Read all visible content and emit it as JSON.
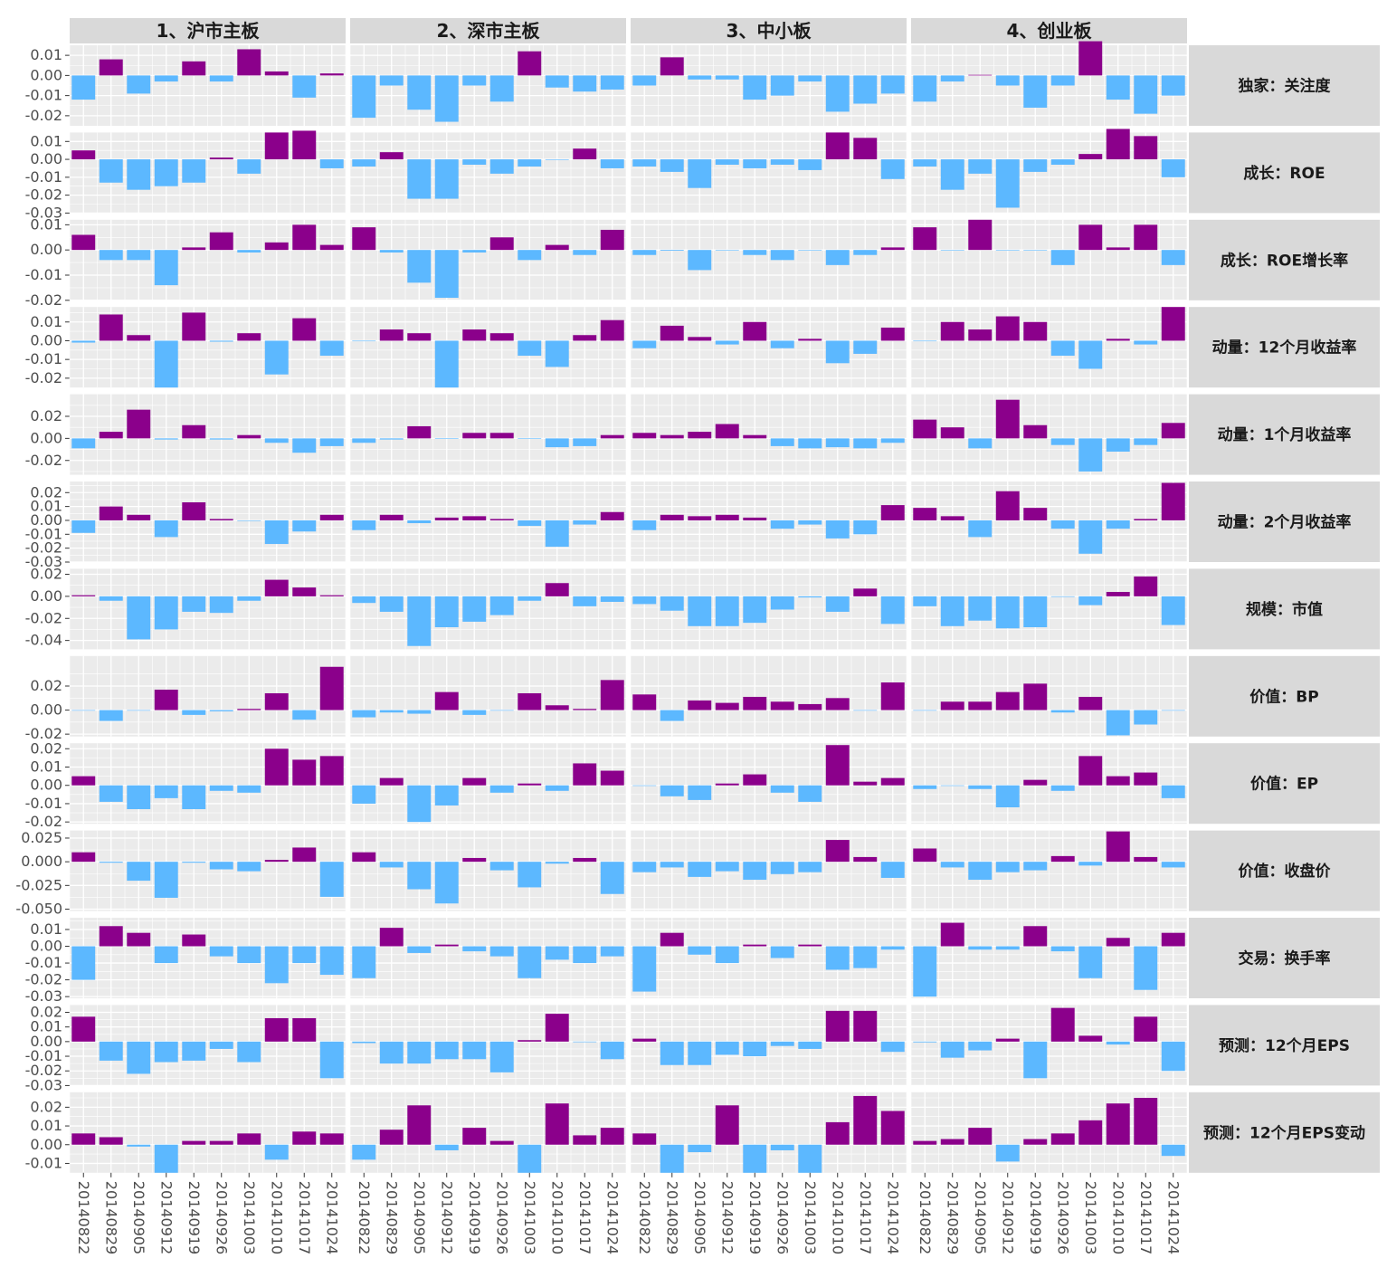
{
  "colors": {
    "positive": "#8B008B",
    "negative": "#5CB8FF",
    "panel": "#EBEBEB",
    "strip": "#D9D9D9",
    "grid": "#FFFFFF",
    "text": "#1a1a1a",
    "tick": "#4d4d4d"
  },
  "chart_data": {
    "type": "bar",
    "title": "",
    "xlabel": "",
    "ylabel": "",
    "grid": true,
    "legend": "none",
    "dates": [
      "20140822",
      "20140829",
      "20140905",
      "20140912",
      "20140919",
      "20140926",
      "20141003",
      "20141010",
      "20141017",
      "20141024"
    ],
    "columns": [
      "1、沪市主板",
      "2、深市主板",
      "3、中小板",
      "4、创业板"
    ],
    "rows": [
      {
        "label": "独家：关注度",
        "ylim": [
          -0.025,
          0.015
        ],
        "ticks": [
          0.01,
          0.0,
          -0.01,
          -0.02
        ],
        "tick_labels": [
          "0.01",
          "0.00",
          "-0.01",
          "-0.02"
        ],
        "values": [
          [
            -0.012,
            0.008,
            -0.009,
            -0.003,
            0.007,
            -0.003,
            0.013,
            0.002,
            -0.011,
            0.001
          ],
          [
            -0.021,
            -0.005,
            -0.017,
            -0.023,
            -0.005,
            -0.013,
            0.012,
            -0.006,
            -0.008,
            -0.007
          ],
          [
            -0.005,
            0.009,
            -0.002,
            -0.002,
            -0.012,
            -0.01,
            -0.003,
            -0.018,
            -0.014,
            -0.009
          ],
          [
            -0.013,
            -0.003,
            0.0003,
            -0.005,
            -0.016,
            -0.005,
            0.017,
            -0.012,
            -0.019,
            -0.01
          ]
        ]
      },
      {
        "label": "成长：ROE",
        "ylim": [
          -0.03,
          0.015
        ],
        "ticks": [
          0.01,
          0.0,
          -0.01,
          -0.02,
          -0.03
        ],
        "tick_labels": [
          "0.01",
          "0.00",
          "-0.01",
          "-0.02",
          "-0.03"
        ],
        "values": [
          [
            0.005,
            -0.013,
            -0.017,
            -0.015,
            -0.013,
            0.001,
            -0.008,
            0.015,
            0.016,
            -0.005
          ],
          [
            -0.004,
            0.004,
            -0.022,
            -0.022,
            -0.003,
            -0.008,
            -0.004,
            0.0,
            0.006,
            -0.005
          ],
          [
            -0.004,
            -0.007,
            -0.016,
            -0.003,
            -0.005,
            -0.003,
            -0.006,
            0.015,
            0.012,
            -0.011
          ],
          [
            -0.004,
            -0.017,
            -0.008,
            -0.027,
            -0.007,
            -0.003,
            0.003,
            0.017,
            0.013,
            -0.01
          ]
        ]
      },
      {
        "label": "成长：ROE增长率",
        "ylim": [
          -0.02,
          0.012
        ],
        "ticks": [
          0.01,
          0.0,
          -0.01,
          -0.02
        ],
        "tick_labels": [
          "0.01",
          "0.00",
          "-0.01",
          "-0.02"
        ],
        "values": [
          [
            0.006,
            -0.004,
            -0.004,
            -0.014,
            0.001,
            0.007,
            -0.001,
            0.003,
            0.01,
            0.002
          ],
          [
            0.009,
            -0.001,
            -0.013,
            -0.019,
            -0.001,
            0.005,
            -0.004,
            0.002,
            -0.002,
            0.008
          ],
          [
            -0.002,
            -0.0003,
            -0.008,
            0.0,
            -0.002,
            -0.004,
            0.0,
            -0.006,
            -0.002,
            0.001
          ],
          [
            0.009,
            0.0,
            0.012,
            0.0,
            0.0,
            -0.006,
            0.01,
            0.001,
            0.01,
            -0.006
          ]
        ]
      },
      {
        "label": "动量：12个月收益率",
        "ylim": [
          -0.025,
          0.018
        ],
        "ticks": [
          0.01,
          0.0,
          -0.01,
          -0.02
        ],
        "tick_labels": [
          "0.01",
          "0.00",
          "-0.01",
          "-0.02"
        ],
        "values": [
          [
            -0.001,
            0.014,
            0.003,
            -0.025,
            0.015,
            -0.0005,
            0.004,
            -0.018,
            0.012,
            -0.008
          ],
          [
            0.0,
            0.006,
            0.004,
            -0.025,
            0.006,
            0.004,
            -0.008,
            -0.014,
            0.003,
            0.011
          ],
          [
            -0.004,
            0.008,
            0.002,
            -0.002,
            0.01,
            -0.004,
            0.001,
            -0.012,
            -0.007,
            0.007
          ],
          [
            0.0,
            0.01,
            0.006,
            0.013,
            0.01,
            -0.008,
            -0.015,
            0.001,
            -0.002,
            0.018
          ]
        ]
      },
      {
        "label": "动量：1个月收益率",
        "ylim": [
          -0.033,
          0.04
        ],
        "ticks": [
          0.02,
          0.0,
          -0.02
        ],
        "tick_labels": [
          "0.02",
          "0.00",
          "-0.02"
        ],
        "values": [
          [
            -0.009,
            0.006,
            0.026,
            -0.001,
            0.012,
            -0.001,
            0.003,
            -0.004,
            -0.013,
            -0.007
          ],
          [
            -0.004,
            -0.001,
            0.011,
            0.0,
            0.005,
            0.005,
            0.0,
            -0.008,
            -0.007,
            0.003
          ],
          [
            0.005,
            0.003,
            0.006,
            0.013,
            0.003,
            -0.007,
            -0.009,
            -0.008,
            -0.009,
            -0.004
          ],
          [
            0.017,
            0.01,
            -0.009,
            0.035,
            0.012,
            -0.006,
            -0.03,
            -0.012,
            -0.006,
            0.014
          ]
        ]
      },
      {
        "label": "动量：2个月收益率",
        "ylim": [
          -0.03,
          0.028
        ],
        "ticks": [
          0.02,
          0.01,
          0.0,
          -0.01,
          -0.02,
          -0.03
        ],
        "tick_labels": [
          "0.02",
          "0.01",
          "0.00",
          "-0.01",
          "-0.02",
          "-0.03"
        ],
        "values": [
          [
            -0.009,
            0.01,
            0.004,
            -0.012,
            0.013,
            0.001,
            0.0,
            -0.017,
            -0.008,
            0.004
          ],
          [
            -0.007,
            0.004,
            -0.002,
            0.002,
            0.003,
            0.001,
            -0.004,
            -0.019,
            -0.003,
            0.006
          ],
          [
            -0.007,
            0.004,
            0.003,
            0.004,
            0.002,
            -0.006,
            -0.003,
            -0.013,
            -0.01,
            0.011
          ],
          [
            0.009,
            0.003,
            -0.012,
            0.021,
            0.009,
            -0.006,
            -0.024,
            -0.006,
            0.001,
            0.027
          ]
        ]
      },
      {
        "label": "规模：市值",
        "ylim": [
          -0.048,
          0.025
        ],
        "ticks": [
          0.02,
          0.0,
          -0.02,
          -0.04
        ],
        "tick_labels": [
          "0.02",
          "0.00",
          "-0.02",
          "-0.04"
        ],
        "values": [
          [
            0.001,
            -0.004,
            -0.039,
            -0.03,
            -0.014,
            -0.015,
            -0.004,
            0.015,
            0.008,
            0.001
          ],
          [
            -0.006,
            -0.014,
            -0.045,
            -0.028,
            -0.023,
            -0.017,
            -0.004,
            0.012,
            -0.009,
            -0.005
          ],
          [
            -0.007,
            -0.013,
            -0.027,
            -0.027,
            -0.024,
            -0.012,
            -0.001,
            -0.014,
            0.007,
            -0.025
          ],
          [
            -0.009,
            -0.027,
            -0.022,
            -0.029,
            -0.028,
            0.0,
            -0.008,
            0.004,
            0.018,
            -0.026
          ]
        ]
      },
      {
        "label": "价值：BP",
        "ylim": [
          -0.022,
          0.045
        ],
        "ticks": [
          0.02,
          0.0,
          -0.02
        ],
        "tick_labels": [
          "0.02",
          "0.00",
          "-0.02"
        ],
        "values": [
          [
            0.0,
            -0.009,
            0.0,
            0.017,
            -0.004,
            -0.001,
            0.001,
            0.014,
            -0.008,
            0.036
          ],
          [
            -0.006,
            -0.002,
            -0.003,
            0.015,
            -0.004,
            0.0,
            0.014,
            0.004,
            0.001,
            0.025
          ],
          [
            0.013,
            -0.009,
            0.008,
            0.006,
            0.011,
            0.007,
            0.005,
            0.01,
            0.0,
            0.023
          ],
          [
            0.0,
            0.007,
            0.007,
            0.015,
            0.022,
            -0.002,
            0.011,
            -0.021,
            -0.012,
            0.0
          ]
        ]
      },
      {
        "label": "价值：EP",
        "ylim": [
          -0.021,
          0.023
        ],
        "ticks": [
          0.02,
          0.01,
          0.0,
          -0.01,
          -0.02
        ],
        "tick_labels": [
          "0.02",
          "0.01",
          "0.00",
          "-0.01",
          "-0.02"
        ],
        "values": [
          [
            0.005,
            -0.009,
            -0.013,
            -0.007,
            -0.013,
            -0.003,
            -0.004,
            0.02,
            0.014,
            0.016
          ],
          [
            -0.01,
            0.004,
            -0.02,
            -0.011,
            0.004,
            -0.004,
            0.001,
            -0.003,
            0.012,
            0.008
          ],
          [
            0.0,
            -0.006,
            -0.008,
            0.001,
            0.006,
            -0.004,
            -0.009,
            0.022,
            0.002,
            0.004
          ],
          [
            -0.002,
            0.0,
            -0.002,
            -0.012,
            0.003,
            -0.003,
            0.016,
            0.005,
            0.007,
            -0.007
          ]
        ]
      },
      {
        "label": "价值：收盘价",
        "ylim": [
          -0.052,
          0.033
        ],
        "ticks": [
          0.025,
          0.0,
          -0.025,
          -0.05
        ],
        "tick_labels": [
          "0.025",
          "0.000",
          "-0.025",
          "-0.050"
        ],
        "values": [
          [
            0.01,
            -0.001,
            -0.02,
            -0.038,
            -0.001,
            -0.008,
            -0.01,
            0.002,
            0.015,
            -0.037
          ],
          [
            0.01,
            -0.006,
            -0.029,
            -0.044,
            0.004,
            -0.009,
            -0.027,
            -0.002,
            0.004,
            -0.034
          ],
          [
            -0.011,
            -0.006,
            -0.016,
            -0.01,
            -0.019,
            -0.013,
            -0.011,
            0.023,
            0.005,
            -0.017
          ],
          [
            0.014,
            -0.006,
            -0.019,
            -0.011,
            -0.009,
            0.006,
            -0.004,
            0.032,
            0.005,
            -0.006
          ]
        ]
      },
      {
        "label": "交易：换手率",
        "ylim": [
          -0.031,
          0.017
        ],
        "ticks": [
          0.01,
          0.0,
          -0.01,
          -0.02,
          -0.03
        ],
        "tick_labels": [
          "0.01",
          "0.00",
          "-0.01",
          "-0.02",
          "-0.03"
        ],
        "values": [
          [
            -0.02,
            0.012,
            0.008,
            -0.01,
            0.007,
            -0.006,
            -0.01,
            -0.022,
            -0.01,
            -0.017
          ],
          [
            -0.019,
            0.011,
            -0.004,
            0.001,
            -0.003,
            -0.006,
            -0.019,
            -0.008,
            -0.01,
            -0.006
          ],
          [
            -0.027,
            0.008,
            -0.005,
            -0.01,
            0.001,
            -0.007,
            0.001,
            -0.014,
            -0.013,
            -0.002
          ],
          [
            -0.03,
            0.014,
            -0.002,
            -0.002,
            0.012,
            -0.003,
            -0.019,
            0.005,
            -0.026,
            0.008
          ]
        ]
      },
      {
        "label": "预测：12个月EPS",
        "ylim": [
          -0.03,
          0.025
        ],
        "ticks": [
          0.02,
          0.01,
          0.0,
          -0.01,
          -0.02,
          -0.03
        ],
        "tick_labels": [
          "0.02",
          "0.01",
          "0.00",
          "-0.01",
          "-0.02",
          "-0.03"
        ],
        "values": [
          [
            0.017,
            -0.013,
            -0.022,
            -0.014,
            -0.013,
            -0.005,
            -0.014,
            0.016,
            0.016,
            -0.025
          ],
          [
            -0.001,
            -0.015,
            -0.015,
            -0.012,
            -0.012,
            -0.021,
            0.001,
            0.019,
            0.0,
            -0.012
          ],
          [
            0.002,
            -0.016,
            -0.016,
            -0.009,
            -0.01,
            -0.003,
            -0.005,
            0.021,
            0.021,
            -0.007
          ],
          [
            -0.0005,
            -0.011,
            -0.006,
            0.002,
            -0.025,
            0.023,
            0.004,
            -0.002,
            0.017,
            -0.02
          ]
        ]
      },
      {
        "label": "预测：12个月EPS变动",
        "ylim": [
          -0.015,
          0.028
        ],
        "ticks": [
          0.02,
          0.01,
          0.0,
          -0.01
        ],
        "tick_labels": [
          "0.02",
          "0.01",
          "0.00",
          "-0.01"
        ],
        "values": [
          [
            0.006,
            0.004,
            -0.001,
            -0.015,
            0.002,
            0.002,
            0.006,
            -0.008,
            0.007,
            0.006
          ],
          [
            -0.008,
            0.008,
            0.021,
            -0.003,
            0.009,
            0.002,
            -0.015,
            0.022,
            0.005,
            0.009
          ],
          [
            0.006,
            -0.015,
            -0.004,
            0.021,
            -0.015,
            -0.003,
            -0.015,
            0.012,
            0.026,
            0.018
          ],
          [
            0.002,
            0.003,
            0.009,
            -0.009,
            0.003,
            0.006,
            0.013,
            0.022,
            0.025,
            -0.006
          ]
        ]
      }
    ]
  }
}
